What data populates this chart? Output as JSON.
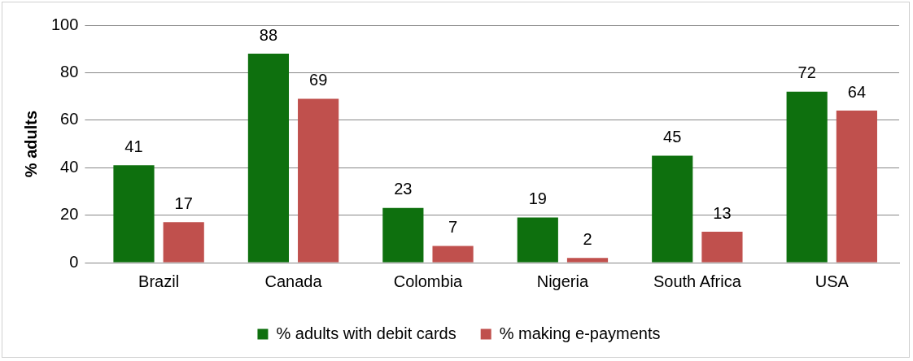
{
  "chart_data": {
    "type": "bar",
    "categories": [
      "Brazil",
      "Canada",
      "Colombia",
      "Nigeria",
      "South Africa",
      "USA"
    ],
    "ylabel": "% adults",
    "series": [
      {
        "name": "% adults with debit cards",
        "color": "#0e700e",
        "values": [
          41,
          88,
          23,
          19,
          45,
          72
        ]
      },
      {
        "name": "% making e-payments",
        "color": "#c0504d",
        "values": [
          17,
          69,
          7,
          2,
          13,
          64
        ]
      }
    ],
    "ylim": [
      0,
      100
    ],
    "yticks": [
      0,
      20,
      40,
      60,
      80,
      100
    ],
    "grid": "y",
    "legend": "bottom",
    "data_labels": true
  }
}
